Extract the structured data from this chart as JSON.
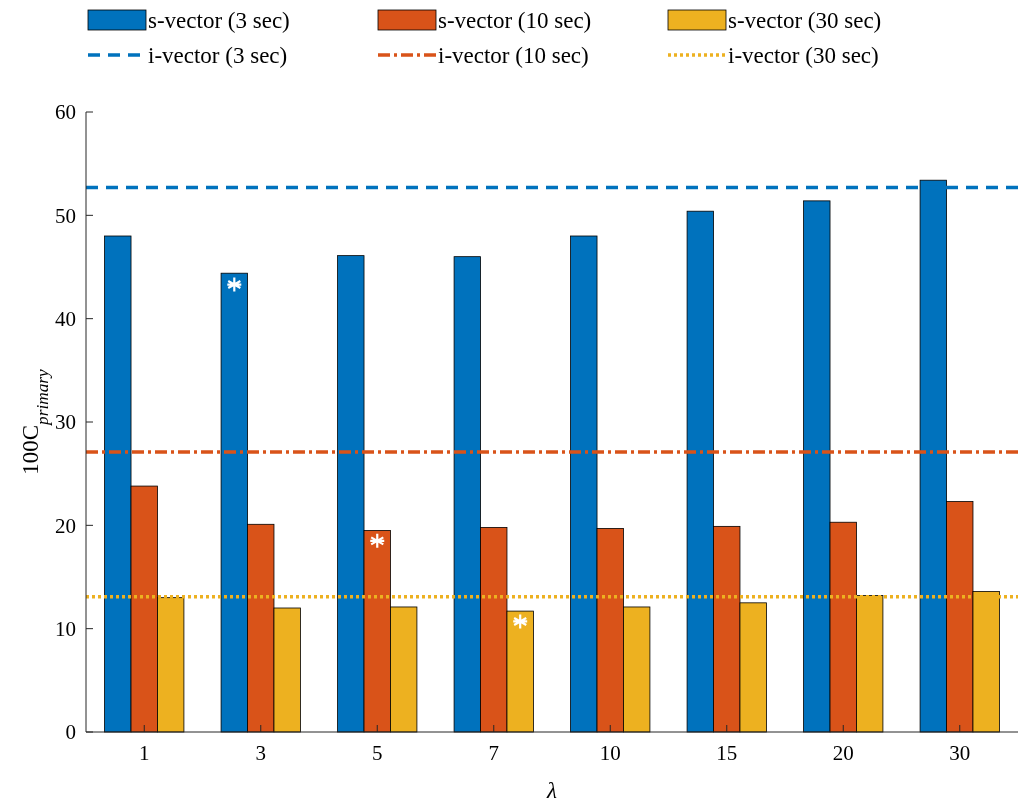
{
  "chart_data": {
    "type": "bar",
    "xlabel": "λ",
    "ylabel": "100C$_{primary}$",
    "categories": [
      "1",
      "3",
      "5",
      "7",
      "10",
      "15",
      "20",
      "30"
    ],
    "series": [
      {
        "name": "s-vector (3 sec)",
        "color": "#0072bd",
        "values": [
          48.0,
          44.4,
          46.1,
          46.0,
          48.0,
          50.4,
          51.4,
          53.4
        ]
      },
      {
        "name": "s-vector (10 sec)",
        "color": "#d95319",
        "values": [
          23.8,
          20.1,
          19.5,
          19.8,
          19.7,
          19.9,
          20.3,
          22.3
        ]
      },
      {
        "name": "s-vector (30 sec)",
        "color": "#edb120",
        "values": [
          13.0,
          12.0,
          12.1,
          11.7,
          12.1,
          12.5,
          13.2,
          13.6
        ]
      },
      {
        "type": "scatter",
        "color": "#ffffff",
        "x": [
          "3"
        ],
        "values": [
          43.3
        ]
      },
      {
        "type": "scatter",
        "color": "#ffffff",
        "x": [
          "5"
        ],
        "values": [
          18.5
        ]
      },
      {
        "type": "scatter",
        "color": "#ffffff",
        "x": [
          "7"
        ],
        "values": [
          10.7
        ]
      }
    ],
    "ref_lines": [
      {
        "axis": "y",
        "value": 52.7,
        "label": "i-vector (3 sec)",
        "color": "#0072bd",
        "line_style": "dashed"
      },
      {
        "axis": "y",
        "value": 27.1,
        "label": "i-vector (10 sec)",
        "color": "#d95319",
        "line_style": "dashdot"
      },
      {
        "axis": "y",
        "value": 13.1,
        "label": "i-vector (30 sec)",
        "color": "#edb120",
        "line_style": "dotted"
      }
    ],
    "ylim": [
      0,
      60
    ],
    "yticks": [
      0,
      10,
      20,
      30,
      40,
      50,
      60
    ],
    "marker": "cross",
    "legend": "top",
    "grid": false
  }
}
